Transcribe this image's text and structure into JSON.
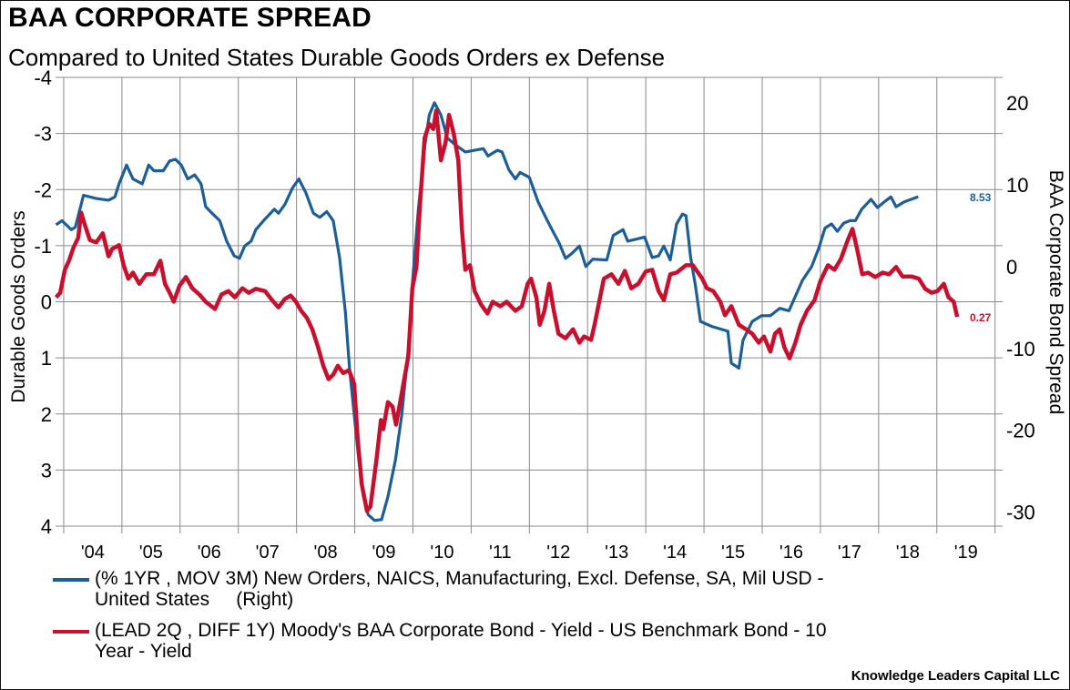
{
  "chart_data": {
    "type": "line",
    "title": "BAA CORPORATE SPREAD",
    "subtitle": "Compared to United States Durable Goods Orders ex Defense",
    "ylabel_left": "Durable Goods Orders",
    "ylabel_right": "BAA Corporate Bond Spread",
    "xlim": [
      2003.86,
      2020.13
    ],
    "ylim_left": [
      -4,
      4
    ],
    "left_axis_inverted": true,
    "ylim_right": [
      -31.7,
      23.1
    ],
    "grid": true,
    "x_tick_labels": [
      "'04",
      "'05",
      "'06",
      "'07",
      "'08",
      "'09",
      "'10",
      "'11",
      "'12",
      "'13",
      "'14",
      "'15",
      "'16",
      "'17",
      "'18",
      "'19"
    ],
    "y_left_ticks": [
      -4,
      -3,
      -2,
      -1,
      0,
      1,
      2,
      3,
      4
    ],
    "y_right_ticks": [
      20,
      10,
      0,
      -10,
      -20,
      -30
    ],
    "legend_placement": "bottom",
    "series": [
      {
        "name": "(% 1YR , MOV 3M) New Orders, NAICS, Manufacturing, Excl. Defense, SA, Mil USD - United States     (Right)",
        "axis": "right",
        "color": "#1b5e99",
        "last_value_label": "8.53",
        "points": [
          [
            2003.87,
            5.1
          ],
          [
            2003.97,
            5.6
          ],
          [
            2004.13,
            4.5
          ],
          [
            2004.2,
            4.8
          ],
          [
            2004.34,
            8.7
          ],
          [
            2004.56,
            8.3
          ],
          [
            2004.77,
            8.1
          ],
          [
            2004.88,
            8.5
          ],
          [
            2004.95,
            10.1
          ],
          [
            2005.08,
            12.4
          ],
          [
            2005.19,
            10.7
          ],
          [
            2005.35,
            10.1
          ],
          [
            2005.46,
            12.4
          ],
          [
            2005.55,
            11.7
          ],
          [
            2005.71,
            11.7
          ],
          [
            2005.82,
            12.9
          ],
          [
            2005.92,
            13.1
          ],
          [
            2006.02,
            12.4
          ],
          [
            2006.13,
            10.7
          ],
          [
            2006.25,
            11.2
          ],
          [
            2006.36,
            10.1
          ],
          [
            2006.44,
            7.3
          ],
          [
            2006.55,
            6.5
          ],
          [
            2006.68,
            5.6
          ],
          [
            2006.8,
            3.1
          ],
          [
            2006.93,
            1.3
          ],
          [
            2007.02,
            1.0
          ],
          [
            2007.11,
            2.5
          ],
          [
            2007.22,
            3.1
          ],
          [
            2007.3,
            4.5
          ],
          [
            2007.46,
            5.8
          ],
          [
            2007.62,
            7.0
          ],
          [
            2007.69,
            6.5
          ],
          [
            2007.8,
            7.6
          ],
          [
            2007.93,
            9.6
          ],
          [
            2008.04,
            10.7
          ],
          [
            2008.16,
            9.0
          ],
          [
            2008.29,
            6.5
          ],
          [
            2008.4,
            6.0
          ],
          [
            2008.52,
            6.7
          ],
          [
            2008.63,
            5.6
          ],
          [
            2008.74,
            1.1
          ],
          [
            2008.84,
            -5.6
          ],
          [
            2008.91,
            -12.4
          ],
          [
            2008.99,
            -18.0
          ],
          [
            2009.07,
            -23.6
          ],
          [
            2009.15,
            -28.1
          ],
          [
            2009.23,
            -30.3
          ],
          [
            2009.34,
            -31.0
          ],
          [
            2009.46,
            -30.9
          ],
          [
            2009.57,
            -28.1
          ],
          [
            2009.7,
            -23.6
          ],
          [
            2009.81,
            -18.0
          ],
          [
            2009.92,
            -10.1
          ],
          [
            2009.99,
            -2.2
          ],
          [
            2010.09,
            6.7
          ],
          [
            2010.2,
            14.6
          ],
          [
            2010.28,
            18.5
          ],
          [
            2010.37,
            20.0
          ],
          [
            2010.48,
            18.5
          ],
          [
            2010.59,
            15.7
          ],
          [
            2010.74,
            14.8
          ],
          [
            2010.9,
            14.0
          ],
          [
            2011.06,
            14.2
          ],
          [
            2011.21,
            14.4
          ],
          [
            2011.29,
            13.5
          ],
          [
            2011.45,
            14.2
          ],
          [
            2011.53,
            14.0
          ],
          [
            2011.65,
            11.8
          ],
          [
            2011.76,
            10.7
          ],
          [
            2011.84,
            11.5
          ],
          [
            2012.0,
            10.9
          ],
          [
            2012.15,
            7.9
          ],
          [
            2012.31,
            5.6
          ],
          [
            2012.39,
            4.5
          ],
          [
            2012.51,
            2.9
          ],
          [
            2012.62,
            1.0
          ],
          [
            2012.73,
            1.6
          ],
          [
            2012.86,
            2.5
          ],
          [
            2012.97,
            0.0
          ],
          [
            2013.09,
            0.9
          ],
          [
            2013.33,
            0.8
          ],
          [
            2013.44,
            3.8
          ],
          [
            2013.61,
            4.5
          ],
          [
            2013.69,
            3.1
          ],
          [
            2013.87,
            3.4
          ],
          [
            2013.98,
            3.6
          ],
          [
            2014.11,
            1.1
          ],
          [
            2014.22,
            1.3
          ],
          [
            2014.31,
            2.5
          ],
          [
            2014.42,
            0.8
          ],
          [
            2014.53,
            5.2
          ],
          [
            2014.63,
            6.4
          ],
          [
            2014.69,
            6.2
          ],
          [
            2014.77,
            1.1
          ],
          [
            2014.85,
            -2.2
          ],
          [
            2014.94,
            -6.7
          ],
          [
            2015.13,
            -7.3
          ],
          [
            2015.41,
            -7.9
          ],
          [
            2015.47,
            -11.8
          ],
          [
            2015.6,
            -12.4
          ],
          [
            2015.67,
            -9.0
          ],
          [
            2015.83,
            -6.7
          ],
          [
            2015.99,
            -6.0
          ],
          [
            2016.14,
            -6.0
          ],
          [
            2016.3,
            -5.1
          ],
          [
            2016.46,
            -5.4
          ],
          [
            2016.69,
            -1.7
          ],
          [
            2016.85,
            0.0
          ],
          [
            2016.97,
            2.2
          ],
          [
            2017.08,
            4.7
          ],
          [
            2017.19,
            5.2
          ],
          [
            2017.29,
            4.3
          ],
          [
            2017.4,
            5.3
          ],
          [
            2017.51,
            5.6
          ],
          [
            2017.6,
            5.6
          ],
          [
            2017.71,
            7.0
          ],
          [
            2017.87,
            8.2
          ],
          [
            2017.98,
            7.2
          ],
          [
            2018.1,
            7.9
          ],
          [
            2018.21,
            8.5
          ],
          [
            2018.3,
            7.3
          ],
          [
            2018.44,
            7.9
          ],
          [
            2018.68,
            8.53
          ]
        ]
      },
      {
        "name": "(LEAD 2Q , DIFF 1Y) Moody's BAA Corporate Bond - Yield - US Benchmark Bond - 10 Year - Yield",
        "axis": "left",
        "color": "#c8102e",
        "last_value_label": "0.27",
        "points": [
          [
            2003.87,
            -0.08
          ],
          [
            2003.94,
            -0.16
          ],
          [
            2004.02,
            -0.57
          ],
          [
            2004.09,
            -0.73
          ],
          [
            2004.17,
            -0.97
          ],
          [
            2004.25,
            -1.14
          ],
          [
            2004.3,
            -1.59
          ],
          [
            2004.36,
            -1.38
          ],
          [
            2004.45,
            -1.1
          ],
          [
            2004.56,
            -1.06
          ],
          [
            2004.67,
            -1.22
          ],
          [
            2004.77,
            -0.81
          ],
          [
            2004.83,
            -0.94
          ],
          [
            2004.95,
            -1.01
          ],
          [
            2005.03,
            -0.65
          ],
          [
            2005.11,
            -0.41
          ],
          [
            2005.19,
            -0.52
          ],
          [
            2005.3,
            -0.32
          ],
          [
            2005.42,
            -0.49
          ],
          [
            2005.55,
            -0.49
          ],
          [
            2005.66,
            -0.73
          ],
          [
            2005.74,
            -0.32
          ],
          [
            2005.82,
            -0.16
          ],
          [
            2005.89,
            0.0
          ],
          [
            2005.99,
            -0.29
          ],
          [
            2006.1,
            -0.44
          ],
          [
            2006.21,
            -0.24
          ],
          [
            2006.33,
            -0.13
          ],
          [
            2006.44,
            0.0
          ],
          [
            2006.6,
            0.13
          ],
          [
            2006.71,
            -0.13
          ],
          [
            2006.83,
            -0.19
          ],
          [
            2006.94,
            -0.08
          ],
          [
            2007.07,
            -0.24
          ],
          [
            2007.18,
            -0.16
          ],
          [
            2007.3,
            -0.23
          ],
          [
            2007.46,
            -0.19
          ],
          [
            2007.58,
            -0.03
          ],
          [
            2007.69,
            0.1
          ],
          [
            2007.8,
            -0.05
          ],
          [
            2007.9,
            -0.11
          ],
          [
            2007.99,
            0.0
          ],
          [
            2008.08,
            0.16
          ],
          [
            2008.18,
            0.29
          ],
          [
            2008.27,
            0.49
          ],
          [
            2008.37,
            0.81
          ],
          [
            2008.46,
            1.14
          ],
          [
            2008.55,
            1.38
          ],
          [
            2008.63,
            1.3
          ],
          [
            2008.71,
            1.14
          ],
          [
            2008.8,
            1.27
          ],
          [
            2008.9,
            1.22
          ],
          [
            2008.99,
            1.46
          ],
          [
            2009.05,
            2.44
          ],
          [
            2009.12,
            3.25
          ],
          [
            2009.21,
            3.73
          ],
          [
            2009.27,
            3.65
          ],
          [
            2009.34,
            3.08
          ],
          [
            2009.38,
            2.76
          ],
          [
            2009.45,
            2.11
          ],
          [
            2009.49,
            2.27
          ],
          [
            2009.57,
            1.79
          ],
          [
            2009.65,
            1.87
          ],
          [
            2009.71,
            2.19
          ],
          [
            2009.81,
            1.62
          ],
          [
            2009.92,
            0.97
          ],
          [
            2009.99,
            -0.24
          ],
          [
            2010.06,
            -0.62
          ],
          [
            2010.12,
            -1.7
          ],
          [
            2010.2,
            -2.92
          ],
          [
            2010.28,
            -3.17
          ],
          [
            2010.35,
            -3.08
          ],
          [
            2010.4,
            -3.41
          ],
          [
            2010.48,
            -2.52
          ],
          [
            2010.56,
            -2.84
          ],
          [
            2010.62,
            -3.33
          ],
          [
            2010.7,
            -3.0
          ],
          [
            2010.78,
            -2.52
          ],
          [
            2010.84,
            -1.3
          ],
          [
            2010.9,
            -0.57
          ],
          [
            2010.98,
            -0.65
          ],
          [
            2011.06,
            -0.19
          ],
          [
            2011.17,
            0.05
          ],
          [
            2011.28,
            0.21
          ],
          [
            2011.37,
            0.0
          ],
          [
            2011.5,
            0.08
          ],
          [
            2011.61,
            0.0
          ],
          [
            2011.76,
            0.16
          ],
          [
            2011.87,
            0.08
          ],
          [
            2011.97,
            -0.32
          ],
          [
            2012.03,
            -0.41
          ],
          [
            2012.12,
            -0.08
          ],
          [
            2012.18,
            0.41
          ],
          [
            2012.26,
            0.16
          ],
          [
            2012.34,
            -0.32
          ],
          [
            2012.42,
            0.16
          ],
          [
            2012.5,
            0.57
          ],
          [
            2012.62,
            0.65
          ],
          [
            2012.75,
            0.49
          ],
          [
            2012.86,
            0.73
          ],
          [
            2012.94,
            0.62
          ],
          [
            2013.06,
            0.68
          ],
          [
            2013.12,
            0.41
          ],
          [
            2013.2,
            0.0
          ],
          [
            2013.28,
            -0.41
          ],
          [
            2013.41,
            -0.49
          ],
          [
            2013.53,
            -0.32
          ],
          [
            2013.64,
            -0.55
          ],
          [
            2013.75,
            -0.24
          ],
          [
            2013.87,
            -0.32
          ],
          [
            2014.0,
            -0.54
          ],
          [
            2014.11,
            -0.57
          ],
          [
            2014.22,
            -0.19
          ],
          [
            2014.31,
            -0.03
          ],
          [
            2014.42,
            -0.49
          ],
          [
            2014.53,
            -0.52
          ],
          [
            2014.69,
            -0.65
          ],
          [
            2014.81,
            -0.65
          ],
          [
            2014.97,
            -0.41
          ],
          [
            2015.05,
            -0.24
          ],
          [
            2015.16,
            -0.19
          ],
          [
            2015.28,
            0.0
          ],
          [
            2015.36,
            0.24
          ],
          [
            2015.47,
            0.08
          ],
          [
            2015.6,
            0.41
          ],
          [
            2015.72,
            0.49
          ],
          [
            2015.83,
            0.57
          ],
          [
            2015.94,
            0.73
          ],
          [
            2016.03,
            0.62
          ],
          [
            2016.14,
            0.89
          ],
          [
            2016.22,
            0.57
          ],
          [
            2016.3,
            0.49
          ],
          [
            2016.38,
            0.81
          ],
          [
            2016.47,
            1.01
          ],
          [
            2016.57,
            0.73
          ],
          [
            2016.66,
            0.41
          ],
          [
            2016.77,
            0.16
          ],
          [
            2016.9,
            -0.03
          ],
          [
            2017.0,
            -0.37
          ],
          [
            2017.13,
            -0.65
          ],
          [
            2017.24,
            -0.57
          ],
          [
            2017.35,
            -0.76
          ],
          [
            2017.47,
            -1.1
          ],
          [
            2017.55,
            -1.3
          ],
          [
            2017.63,
            -0.94
          ],
          [
            2017.72,
            -0.49
          ],
          [
            2017.82,
            -0.52
          ],
          [
            2017.94,
            -0.44
          ],
          [
            2018.07,
            -0.52
          ],
          [
            2018.18,
            -0.49
          ],
          [
            2018.3,
            -0.62
          ],
          [
            2018.41,
            -0.45
          ],
          [
            2018.57,
            -0.45
          ],
          [
            2018.69,
            -0.41
          ],
          [
            2018.8,
            -0.23
          ],
          [
            2018.91,
            -0.16
          ],
          [
            2019.01,
            -0.19
          ],
          [
            2019.12,
            -0.32
          ],
          [
            2019.2,
            -0.08
          ],
          [
            2019.29,
            0.0
          ],
          [
            2019.35,
            0.27
          ]
        ]
      }
    ]
  },
  "legend": {
    "blue_line1": "(% 1YR , MOV 3M) New Orders, NAICS, Manufacturing, Excl. Defense, SA, Mil USD -",
    "blue_line2": "United States     (Right)",
    "red_line1": "(LEAD 2Q , DIFF 1Y) Moody's BAA Corporate Bond - Yield - US Benchmark Bond - 10",
    "red_line2": "Year - Yield"
  },
  "footer": "Knowledge Leaders Capital LLC"
}
